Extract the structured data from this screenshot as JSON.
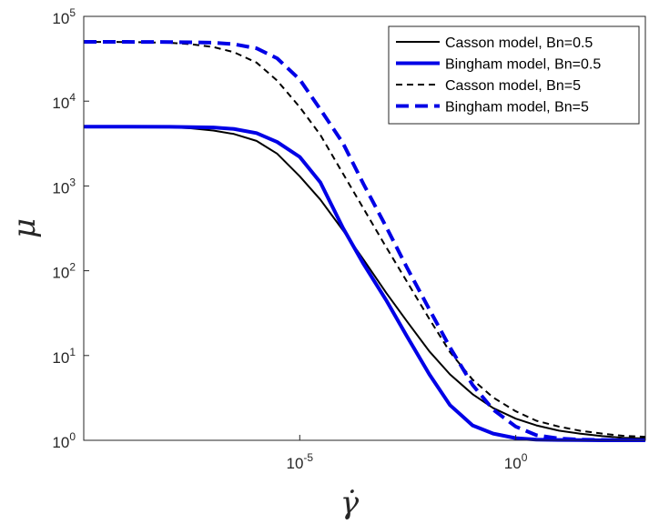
{
  "chart_data": {
    "type": "line",
    "xscale": "log",
    "yscale": "log",
    "xlim": [
      1e-10,
      1000.0
    ],
    "ylim": [
      1,
      100000.0
    ],
    "xticks": [
      {
        "value": 1e-05,
        "base": "10",
        "exp": "-5"
      },
      {
        "value": 1,
        "base": "10",
        "exp": "0"
      }
    ],
    "yticks": [
      {
        "value": 1,
        "base": "10",
        "exp": "0"
      },
      {
        "value": 10,
        "base": "10",
        "exp": "1"
      },
      {
        "value": 100,
        "base": "10",
        "exp": "2"
      },
      {
        "value": 1000,
        "base": "10",
        "exp": "3"
      },
      {
        "value": 10000,
        "base": "10",
        "exp": "4"
      },
      {
        "value": 100000,
        "base": "10",
        "exp": "5"
      }
    ],
    "xlabel": "γ̇",
    "ylabel": "μ",
    "grid": false,
    "legend_position": "top-right",
    "series": [
      {
        "name": "Casson model, Bn=0.5",
        "color": "#000000",
        "dash": "solid",
        "width": 2,
        "x": [
          1e-10,
          1e-09,
          1e-08,
          3e-08,
          1e-07,
          3e-07,
          1e-06,
          3e-06,
          1e-05,
          3e-05,
          0.0001,
          0.0003,
          0.001,
          0.003,
          0.01,
          0.03,
          0.1,
          0.3,
          1,
          3,
          10,
          30,
          100,
          300,
          1000
        ],
        "y": [
          5000,
          4990,
          4920,
          4790,
          4500,
          4100,
          3400,
          2400,
          1300,
          690,
          300,
          135,
          55,
          25.5,
          11.2,
          6,
          3.5,
          2.4,
          1.8,
          1.5,
          1.3,
          1.2,
          1.12,
          1.07,
          1.05
        ]
      },
      {
        "name": "Bingham model, Bn=0.5",
        "color": "#0000e6",
        "dash": "solid",
        "width": 4,
        "x": [
          1e-10,
          1e-09,
          1e-08,
          1e-07,
          3e-07,
          1e-06,
          3e-06,
          1e-05,
          3e-05,
          0.0001,
          0.0003,
          0.001,
          0.003,
          0.01,
          0.03,
          0.1,
          0.3,
          1,
          3,
          10,
          100,
          1000
        ],
        "y": [
          5000,
          5000,
          4980,
          4900,
          4700,
          4200,
          3300,
          2200,
          1100,
          320,
          120,
          45,
          17,
          6,
          2.6,
          1.5,
          1.2,
          1.06,
          1.02,
          1.01,
          1.0,
          1.0
        ]
      },
      {
        "name": "Casson model, Bn=5",
        "color": "#000000",
        "dash": "dashed",
        "width": 2,
        "x": [
          1e-10,
          1e-09,
          1e-08,
          3e-08,
          1e-07,
          3e-07,
          1e-06,
          3e-06,
          1e-05,
          3e-05,
          0.0001,
          0.0003,
          0.001,
          0.003,
          0.01,
          0.03,
          0.1,
          0.3,
          1,
          3,
          10,
          30,
          100,
          300,
          1000
        ],
        "y": [
          50000,
          49800,
          48800,
          47000,
          43500,
          37800,
          28500,
          17500,
          8500,
          4000,
          1400,
          540,
          190,
          75,
          27,
          11,
          5.2,
          3.2,
          2.2,
          1.7,
          1.45,
          1.3,
          1.2,
          1.13,
          1.1
        ]
      },
      {
        "name": "Bingham model, Bn=5",
        "color": "#0000e6",
        "dash": "dashed",
        "width": 4,
        "x": [
          1e-10,
          1e-09,
          1e-08,
          1e-07,
          3e-07,
          1e-06,
          3e-06,
          1e-05,
          3e-05,
          0.0001,
          0.0003,
          0.001,
          0.003,
          0.01,
          0.03,
          0.1,
          0.3,
          1,
          3,
          10,
          30,
          100,
          1000
        ],
        "y": [
          50000,
          50000,
          49800,
          49000,
          47000,
          42000,
          32000,
          18000,
          8000,
          3200,
          1050,
          330,
          110,
          35,
          12.5,
          4.5,
          2.3,
          1.45,
          1.15,
          1.05,
          1.02,
          1.01,
          1.0
        ]
      }
    ]
  }
}
